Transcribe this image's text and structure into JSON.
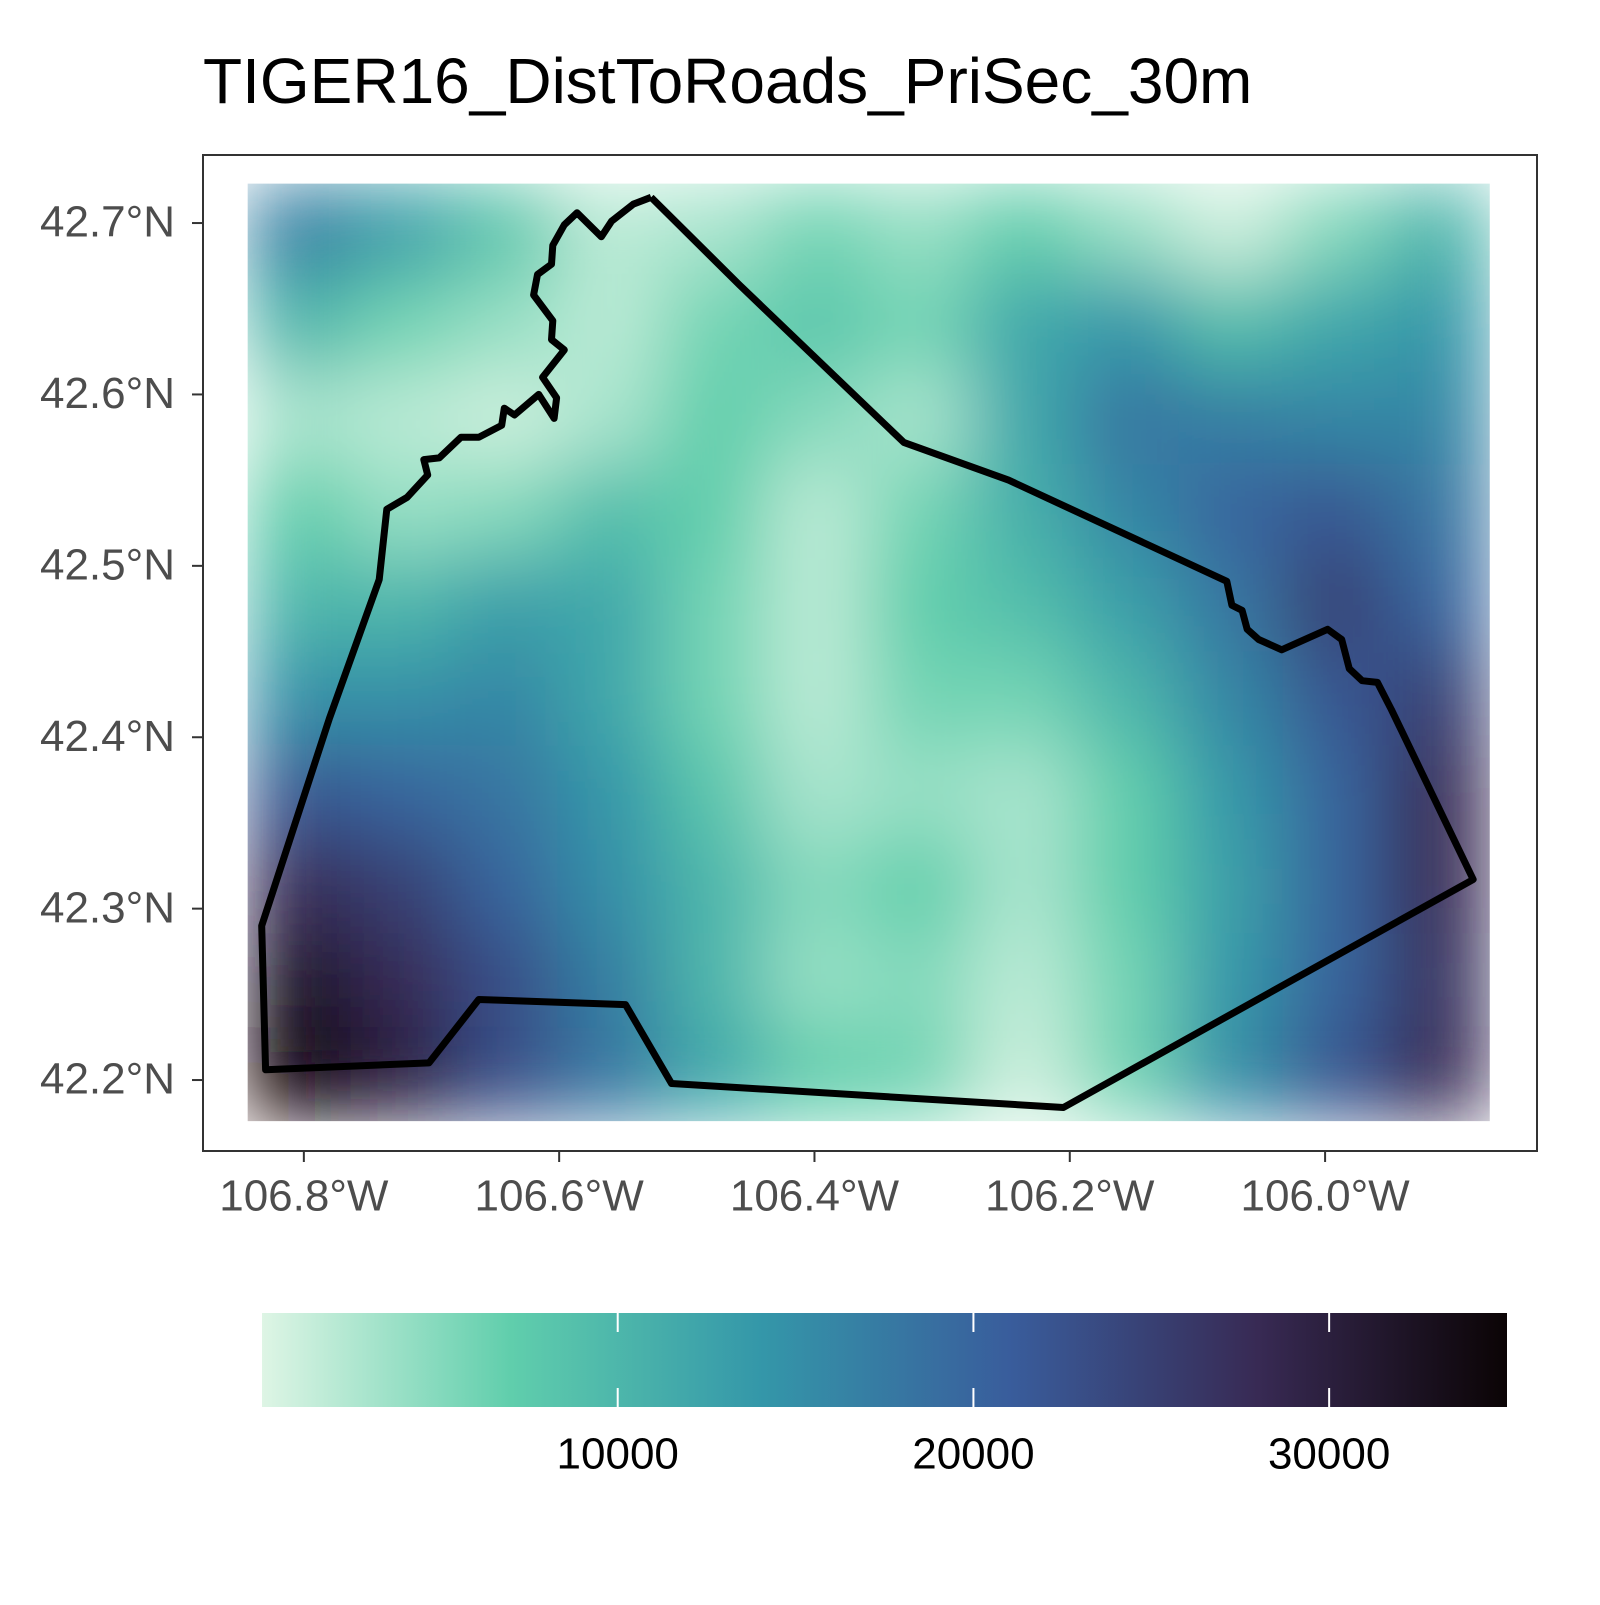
{
  "chart_data": {
    "type": "raster-map",
    "title": "TIGER16_DistToRoads_PriSec_30m",
    "xlim": [
      -106.879,
      -105.834
    ],
    "ylim": [
      42.1586,
      42.7397
    ],
    "xticks": [
      {
        "value": -106.8,
        "label": "106.8°W"
      },
      {
        "value": -106.6,
        "label": "106.6°W"
      },
      {
        "value": -106.4,
        "label": "106.4°W"
      },
      {
        "value": -106.2,
        "label": "106.2°W"
      },
      {
        "value": -106.0,
        "label": "106.0°W"
      }
    ],
    "yticks": [
      {
        "value": 42.2,
        "label": "42.2°N"
      },
      {
        "value": 42.3,
        "label": "42.3°N"
      },
      {
        "value": 42.4,
        "label": "42.4°N"
      },
      {
        "value": 42.5,
        "label": "42.5°N"
      },
      {
        "value": 42.6,
        "label": "42.6°N"
      },
      {
        "value": 42.7,
        "label": "42.7°N"
      }
    ],
    "raster": {
      "lon_range": [
        -106.844,
        -105.871
      ],
      "lat_range": [
        42.176,
        42.723
      ],
      "values": [
        [
          17000,
          13000,
          8000,
          2000,
          3000,
          6000,
          4000,
          7000,
          4000,
          1000,
          5000,
          10000
        ],
        [
          10000,
          6000,
          4000,
          2000,
          6000,
          8000,
          6000,
          12000,
          14000,
          9000,
          12000,
          14000
        ],
        [
          3000,
          2000,
          1000,
          3000,
          7000,
          5000,
          3000,
          12000,
          18000,
          17000,
          16000,
          16000
        ],
        [
          7000,
          4000,
          5000,
          9000,
          7000,
          2000,
          6000,
          11000,
          16000,
          20000,
          22000,
          18000
        ],
        [
          10000,
          10000,
          13000,
          12000,
          6000,
          2000,
          7000,
          9000,
          13000,
          18000,
          25000,
          20000
        ],
        [
          15000,
          15000,
          16000,
          12000,
          6000,
          2000,
          6000,
          6000,
          10000,
          16000,
          22000,
          25000
        ],
        [
          22000,
          20000,
          18000,
          14000,
          8000,
          3000,
          4000,
          3000,
          7000,
          14000,
          20000,
          28000
        ],
        [
          28000,
          25000,
          20000,
          15000,
          10000,
          5000,
          7000,
          3000,
          7000,
          13000,
          20000,
          28000
        ],
        [
          32000,
          28000,
          23000,
          17000,
          10000,
          4000,
          5000,
          2000,
          6000,
          14000,
          20000,
          27000
        ],
        [
          35000,
          30000,
          23000,
          18000,
          12000,
          7000,
          6000,
          1000,
          6000,
          15000,
          22000,
          28000
        ]
      ]
    },
    "colorscale": [
      "#def5e5",
      "#60ceac",
      "#3497a9",
      "#395d9c",
      "#382a54",
      "#0b0405"
    ],
    "colorbar_lim": [
      0,
      35000
    ],
    "colorbar_ticks": [
      10000,
      20000,
      30000
    ],
    "boundary": {
      "color": "#000000",
      "lon": [
        -106.528,
        -106.459,
        -106.33,
        -106.248,
        -106.077,
        -106.073,
        -106.065,
        -106.061,
        -106.052,
        -106.034,
        -105.998,
        -105.987,
        -105.981,
        -105.971,
        -105.959,
        -105.948,
        -105.884,
        -106.205,
        -106.512,
        -106.548,
        -106.663,
        -106.702,
        -106.83,
        -106.833,
        -106.78,
        -106.741,
        -106.735,
        -106.719,
        -106.703,
        -106.706,
        -106.694,
        -106.677,
        -106.663,
        -106.645,
        -106.643,
        -106.635,
        -106.616,
        -106.604,
        -106.602,
        -106.613,
        -106.596,
        -106.606,
        -106.605,
        -106.62,
        -106.617,
        -106.606,
        -106.605,
        -106.596,
        -106.586,
        -106.567,
        -106.559,
        -106.542,
        -106.528
      ],
      "lat": [
        42.715,
        42.664,
        42.572,
        42.55,
        42.491,
        42.477,
        42.474,
        42.463,
        42.457,
        42.451,
        42.463,
        42.457,
        42.44,
        42.433,
        42.432,
        42.416,
        42.317,
        42.184,
        42.198,
        42.244,
        42.247,
        42.21,
        42.206,
        42.29,
        42.411,
        42.492,
        42.533,
        42.54,
        42.553,
        42.562,
        42.563,
        42.575,
        42.575,
        42.582,
        42.592,
        42.588,
        42.6,
        42.586,
        42.598,
        42.61,
        42.626,
        42.632,
        42.643,
        42.658,
        42.67,
        42.676,
        42.687,
        42.699,
        42.706,
        42.692,
        42.701,
        42.711,
        42.715
      ]
    }
  }
}
